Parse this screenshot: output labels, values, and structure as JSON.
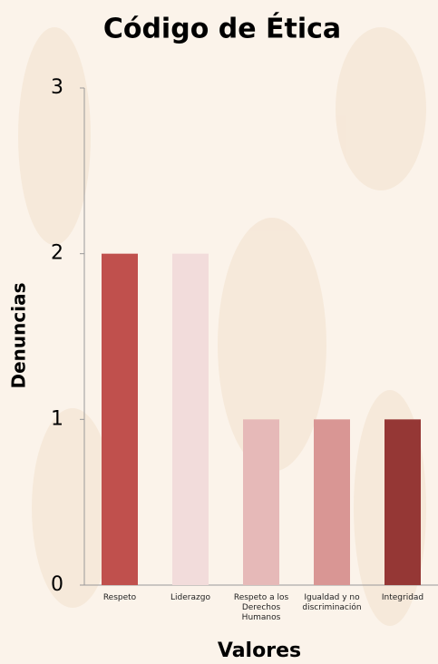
{
  "chart_data": {
    "type": "bar",
    "title": "Código de Ética",
    "categories": [
      "Respeto",
      "Liderazgo",
      "Respeto a los Derechos Humanos",
      "Igualdad y no discriminación",
      "Integridad"
    ],
    "values": [
      2,
      2,
      1,
      1,
      1
    ],
    "colors": [
      "#c0504d",
      "#f2dcdb",
      "#e6b9b8",
      "#d99694",
      "#953735"
    ],
    "ylim": [
      0,
      3
    ],
    "yticks": [
      0,
      1,
      2,
      3
    ],
    "ylabel": "Denuncias",
    "xlabel": "Valores"
  }
}
